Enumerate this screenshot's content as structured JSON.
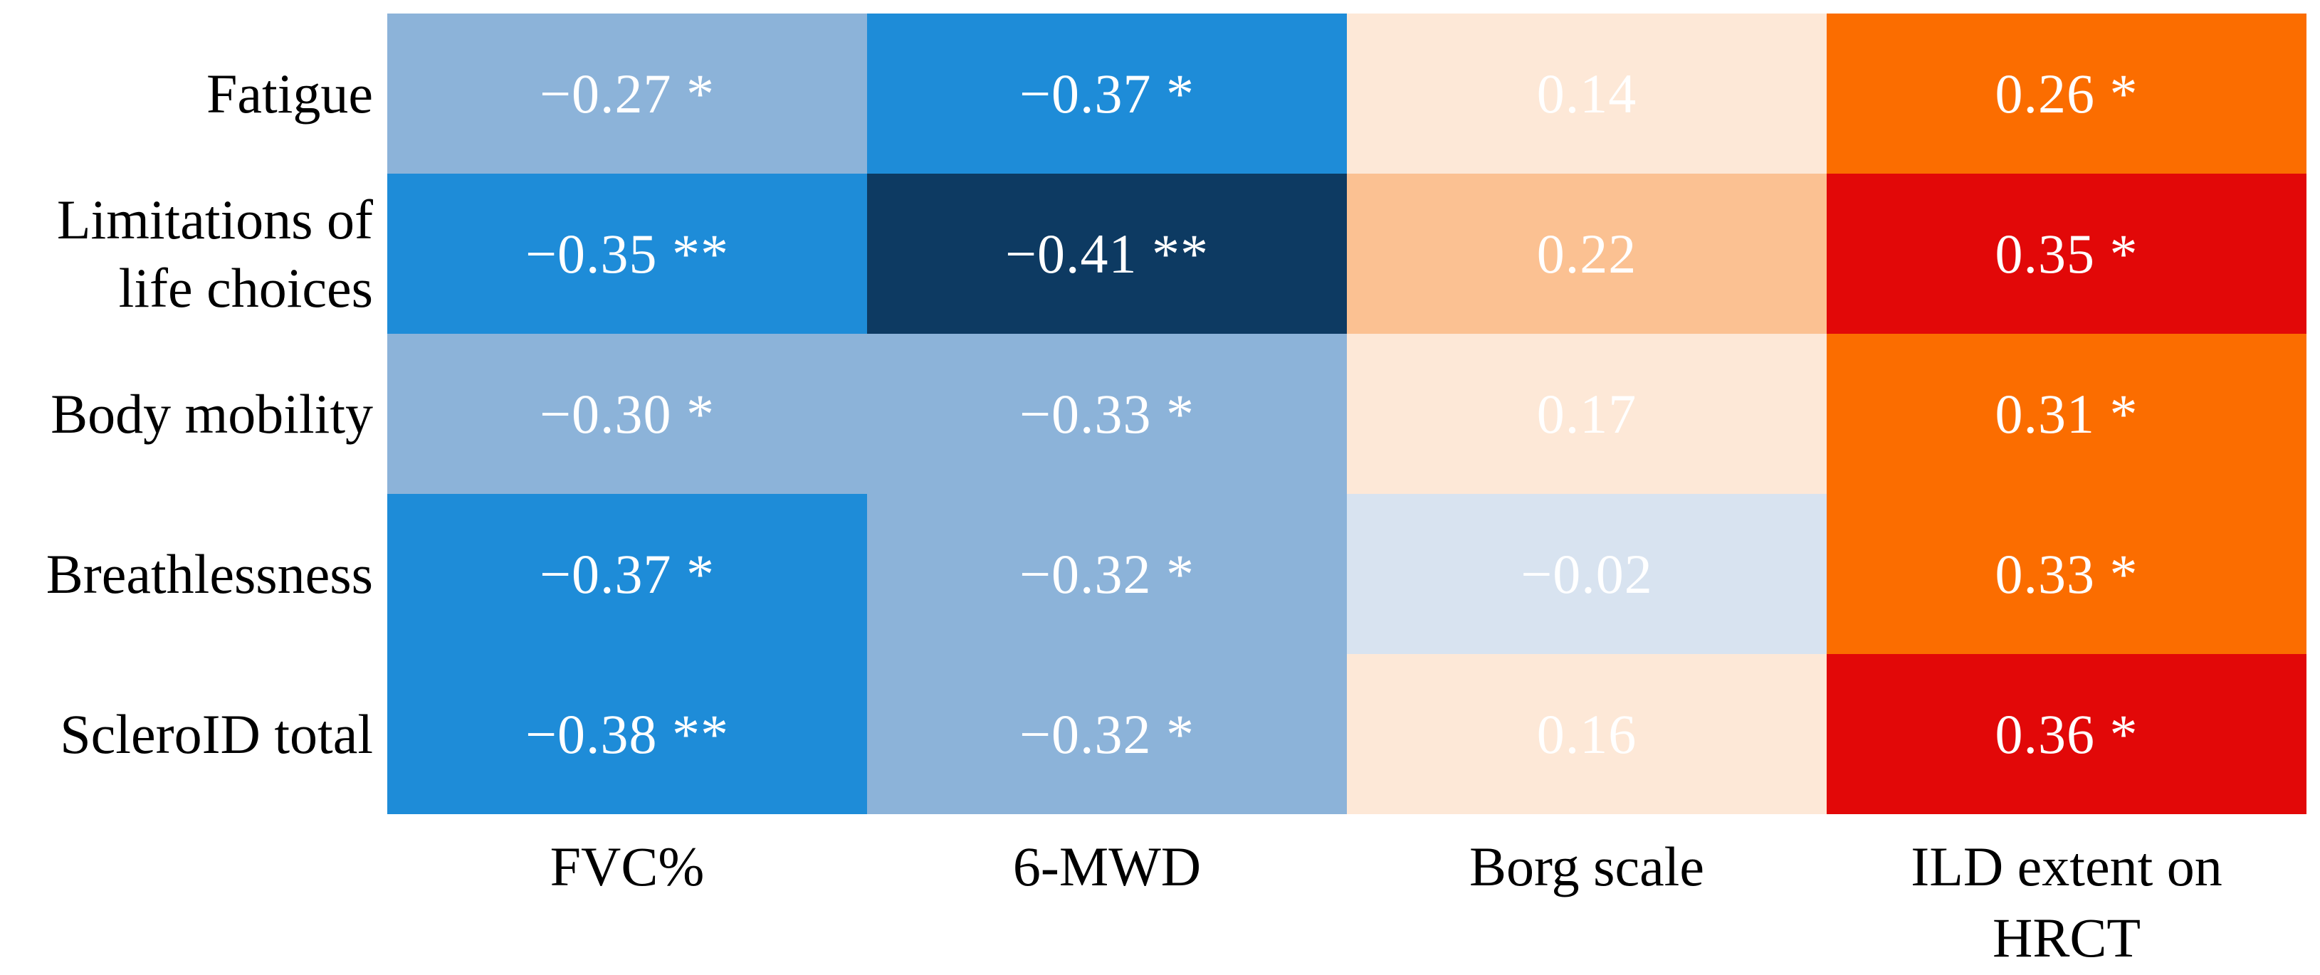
{
  "figure": {
    "background": "#ffffff"
  },
  "chart_data": {
    "type": "heatmap",
    "rows": [
      "Fatigue",
      "Limitations of life choices",
      "Body mobility",
      "Breathlessness",
      "ScleroID total"
    ],
    "row_label_lines": [
      [
        "Fatigue"
      ],
      [
        "Limitations of",
        "life choices"
      ],
      [
        "Body mobility"
      ],
      [
        "Breathlessness"
      ],
      [
        "ScleroID total"
      ]
    ],
    "columns": [
      "FVC%",
      "6-MWD",
      "Borg scale",
      "ILD extent on HRCT"
    ],
    "col_label_lines": [
      [
        "FVC%"
      ],
      [
        "6-MWD"
      ],
      [
        "Borg scale"
      ],
      [
        "ILD extent on",
        "HRCT"
      ]
    ],
    "values": [
      [
        -0.27,
        -0.37,
        0.14,
        0.26
      ],
      [
        -0.35,
        -0.41,
        0.22,
        0.35
      ],
      [
        -0.3,
        -0.33,
        0.17,
        0.31
      ],
      [
        -0.37,
        -0.32,
        -0.02,
        0.33
      ],
      [
        -0.38,
        -0.32,
        0.16,
        0.36
      ]
    ],
    "cell_labels": [
      [
        "−0.27 *",
        "−0.37 *",
        "0.14",
        "0.26 *"
      ],
      [
        "−0.35 **",
        "−0.41 **",
        "0.22",
        "0.35 *"
      ],
      [
        "−0.30 *",
        "−0.33 *",
        "0.17",
        "0.31 *"
      ],
      [
        "−0.37 *",
        "−0.32 *",
        "−0.02",
        "0.33 *"
      ],
      [
        "−0.38 **",
        "−0.32 *",
        "0.16",
        "0.36 *"
      ]
    ],
    "cell_colors": [
      [
        "#8cb3d9",
        "#1e8cd8",
        "#fde8d7",
        "#fb6d00"
      ],
      [
        "#1e8cd8",
        "#0d3a62",
        "#fbc192",
        "#e20808"
      ],
      [
        "#8cb3d9",
        "#8cb3d9",
        "#fde8d7",
        "#fb6d00"
      ],
      [
        "#1e8cd8",
        "#8cb3d9",
        "#d8e3f0",
        "#fb6d00"
      ],
      [
        "#1e8cd8",
        "#8cb3d9",
        "#fde8d7",
        "#e20808"
      ]
    ],
    "value_text_color": "#ffffff",
    "label_text_color": "#000000",
    "color_scale": {
      "strong_negative": "#0d3a62",
      "negative": "#1e8cd8",
      "weak_negative": "#8cb3d9",
      "near_zero": "#d8e3f0",
      "weak_positive": "#fde8d7",
      "mild_positive": "#fbc192",
      "positive": "#fb6d00",
      "strong_positive": "#e20808"
    },
    "legend_position": "none",
    "grid": false,
    "title": "",
    "xlabel": "",
    "ylabel": ""
  }
}
